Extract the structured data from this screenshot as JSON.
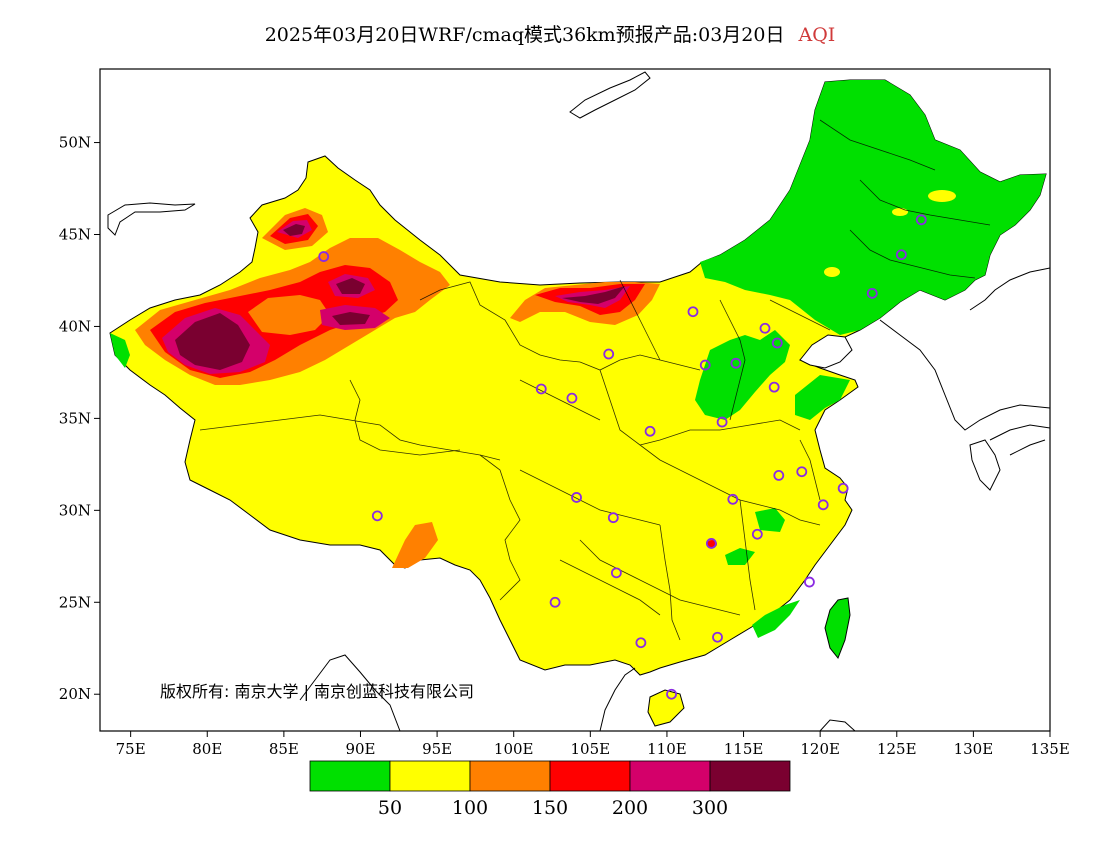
{
  "title": {
    "main": "2025年03月20日WRF/cmaq模式36km预报产品:03月20日",
    "suffix": "AQI",
    "suffix_color": "#d03a3a"
  },
  "axes": {
    "x_ticks": [
      "75E",
      "80E",
      "85E",
      "90E",
      "95E",
      "100E",
      "105E",
      "110E",
      "115E",
      "120E",
      "125E",
      "130E",
      "135E"
    ],
    "y_ticks": [
      "20N",
      "25N",
      "30N",
      "35N",
      "40N",
      "45N",
      "50N"
    ],
    "lon_range": [
      73,
      135
    ],
    "lat_range": [
      18,
      54
    ]
  },
  "copyright": "版权所有: 南京大学 | 南京创蓝科技有限公司",
  "legend": {
    "colors": [
      "#00e000",
      "#ffff00",
      "#ff8000",
      "#ff0000",
      "#d4006a",
      "#7a0030"
    ],
    "labels": [
      "50",
      "100",
      "150",
      "200",
      "300"
    ]
  },
  "stations": [
    [
      87.6,
      43.8
    ],
    [
      91.1,
      29.7
    ],
    [
      101.8,
      36.6
    ],
    [
      103.8,
      36.1
    ],
    [
      106.2,
      38.5
    ],
    [
      111.7,
      40.8
    ],
    [
      116.4,
      39.9
    ],
    [
      117.2,
      39.1
    ],
    [
      114.5,
      38.0
    ],
    [
      112.5,
      37.9
    ],
    [
      117.0,
      36.7
    ],
    [
      113.6,
      34.8
    ],
    [
      108.9,
      34.3
    ],
    [
      117.3,
      31.9
    ],
    [
      118.8,
      32.1
    ],
    [
      121.5,
      31.2
    ],
    [
      120.2,
      30.3
    ],
    [
      114.3,
      30.6
    ],
    [
      112.9,
      28.2
    ],
    [
      115.9,
      28.7
    ],
    [
      104.1,
      30.7
    ],
    [
      106.5,
      29.6
    ],
    [
      106.7,
      26.6
    ],
    [
      102.7,
      25.0
    ],
    [
      108.3,
      22.8
    ],
    [
      113.3,
      23.1
    ],
    [
      119.3,
      26.1
    ],
    [
      110.3,
      20.0
    ],
    [
      123.4,
      41.8
    ],
    [
      125.3,
      43.9
    ],
    [
      126.6,
      45.8
    ]
  ]
}
